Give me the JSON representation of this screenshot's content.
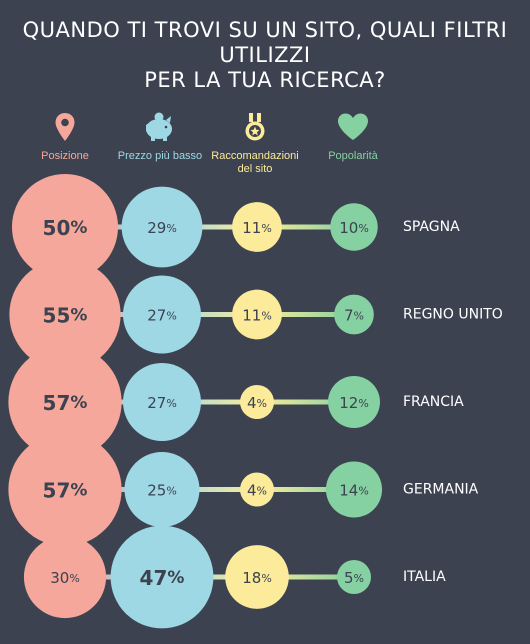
{
  "header": {
    "title_line1": "QUANDO TI TROVI SU UN SITO, QUALI FILTRI UTILIZZI",
    "title_line2": "PER LA TUA RICERCA?"
  },
  "legend": [
    {
      "label": "Posizione",
      "label_line2": "",
      "icon": "location-pin-icon",
      "color": "#f4a79a"
    },
    {
      "label": "Prezzo più basso",
      "label_line2": "",
      "icon": "piggy-bank-icon",
      "color": "#9ed8e4"
    },
    {
      "label": "Raccomandazioni",
      "label_line2": "del sito",
      "icon": "medal-icon",
      "color": "#fbeb9a"
    },
    {
      "label": "Popolarità",
      "label_line2": "",
      "icon": "heart-icon",
      "color": "#86d1a2"
    }
  ],
  "chart_data": {
    "type": "bubble",
    "categories": [
      "SPAGNA",
      "REGNO UNITO",
      "FRANCIA",
      "GERMANIA",
      "ITALIA"
    ],
    "series": [
      {
        "name": "Posizione",
        "values": [
          50,
          55,
          57,
          57,
          30
        ],
        "color": "#f4a79a"
      },
      {
        "name": "Prezzo più basso",
        "values": [
          29,
          27,
          27,
          25,
          47
        ],
        "color": "#9ed8e4"
      },
      {
        "name": "Raccomandazioni del sito",
        "values": [
          11,
          11,
          4,
          4,
          18
        ],
        "color": "#fbeb9a"
      },
      {
        "name": "Popolarità",
        "values": [
          10,
          7,
          12,
          14,
          5
        ],
        "color": "#86d1a2"
      }
    ],
    "unit": "%"
  }
}
